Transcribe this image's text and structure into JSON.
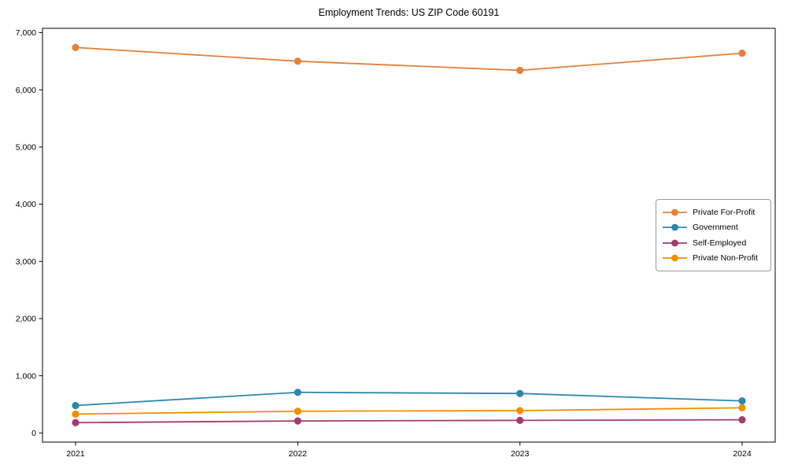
{
  "chart_data": {
    "type": "line",
    "title": "Employment Trends: US ZIP Code 60191",
    "x": [
      "2021",
      "2022",
      "2023",
      "2024"
    ],
    "series": [
      {
        "name": "Private For-Profit",
        "color": "#E2823C",
        "values": [
          6740,
          6500,
          6340,
          6640
        ]
      },
      {
        "name": "Government",
        "color": "#2E86AB",
        "values": [
          480,
          710,
          690,
          560
        ]
      },
      {
        "name": "Self-Employed",
        "color": "#A23B72",
        "values": [
          180,
          210,
          220,
          230
        ]
      },
      {
        "name": "Private Non-Profit",
        "color": "#F18F01",
        "values": [
          330,
          380,
          390,
          440
        ]
      }
    ],
    "xlabel": "",
    "ylabel": "",
    "yticks": [
      0,
      1000,
      2000,
      3000,
      4000,
      5000,
      6000,
      7000
    ],
    "ytick_labels": [
      "0",
      "1,000",
      "2,000",
      "3,000",
      "4,000",
      "5,000",
      "6,000",
      "7,000"
    ],
    "ylim": [
      -160,
      7075
    ],
    "grid": false,
    "legend_position": "center-right",
    "marker": "circle",
    "axis_color": "#000000"
  }
}
